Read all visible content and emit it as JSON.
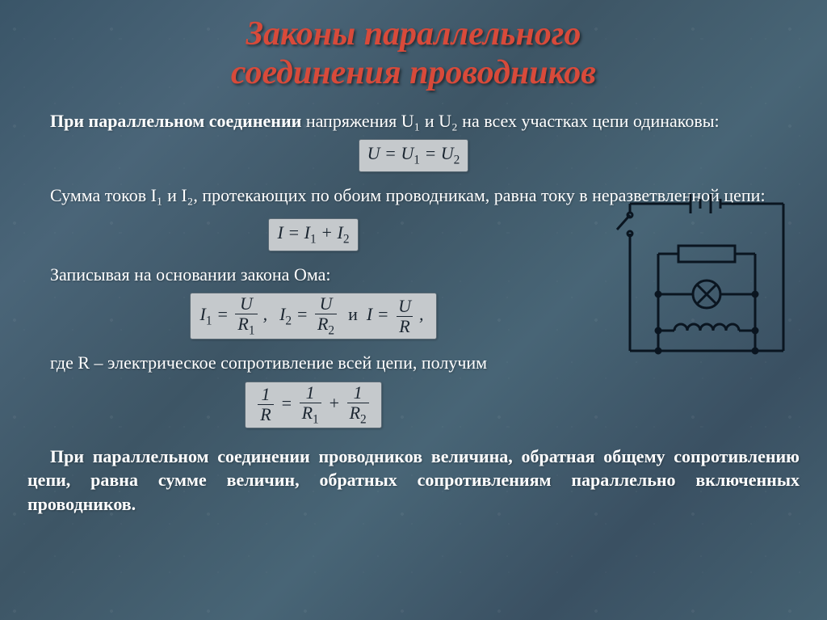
{
  "title_line1": "Законы параллельного",
  "title_line2": "соединения проводников",
  "title_fontsize": 42,
  "title_color": "#d84a3a",
  "body_fontsize": 22,
  "formula_fontsize": 22,
  "background_gradient": [
    "#3a5568",
    "#4a6578",
    "#3d5565"
  ],
  "formula_box_bg": "#c5c9cc",
  "formula_box_border": "#5a6a75",
  "text_color": "#ffffff",
  "formula_text_color": "#1a2530",
  "para1_pre": "При параллельном соединении",
  "para1_post": " напряжения U₁ и U₂ на всех участках цепи одинаковы:",
  "formula1_html": "U = U<span class=\"sub\">1</span> = U<span class=\"sub\">2</span>",
  "para2": "Сумма токов I₁ и I₂, протекающих по обоим проводникам, равна току в неразветвленной цепи:",
  "formula2_html": "I = I<span class=\"sub\">1</span> + I<span class=\"sub\">2</span>",
  "para3": "Записывая на основании закона Ома:",
  "formula3_html": "<span style=\"font-style:italic\">I<span class=\"sub\">1</span> = <span class=\"frac\"><span class=\"num\">U</span><span class=\"den\">R<span class=\"sub\">1</span></span></span><span class=\"conn\">,</span>&nbsp;&nbsp;I<span class=\"sub\">2</span> = <span class=\"frac\"><span class=\"num\">U</span><span class=\"den\">R<span class=\"sub\">2</span></span></span>&nbsp;&nbsp;<span style=\"font-style:normal\">и</span>&nbsp;&nbsp;I = <span class=\"frac\"><span class=\"num\">U</span><span class=\"den\">R</span></span><span class=\"conn\">,</span></span>",
  "para4": "где R – электрическое сопротивление всей цепи, получим",
  "formula4_html": "<span class=\"frac\"><span class=\"num\">1</span><span class=\"den\">R</span></span> = <span class=\"frac\"><span class=\"num\">1</span><span class=\"den\">R<span class=\"sub\">1</span></span></span> + <span class=\"frac\"><span class=\"num\">1</span><span class=\"den\">R<span class=\"sub\">2</span></span></span>",
  "para5": "При параллельном соединении проводников величина, обратная общему сопротивлению цепи, равна сумме величин, обратных сопротивлениям параллельно включенных проводников.",
  "circuit": {
    "stroke_color": "#0a1520",
    "stroke_width": 3,
    "components": [
      "battery",
      "switch",
      "resistor",
      "lamp",
      "coil"
    ]
  }
}
